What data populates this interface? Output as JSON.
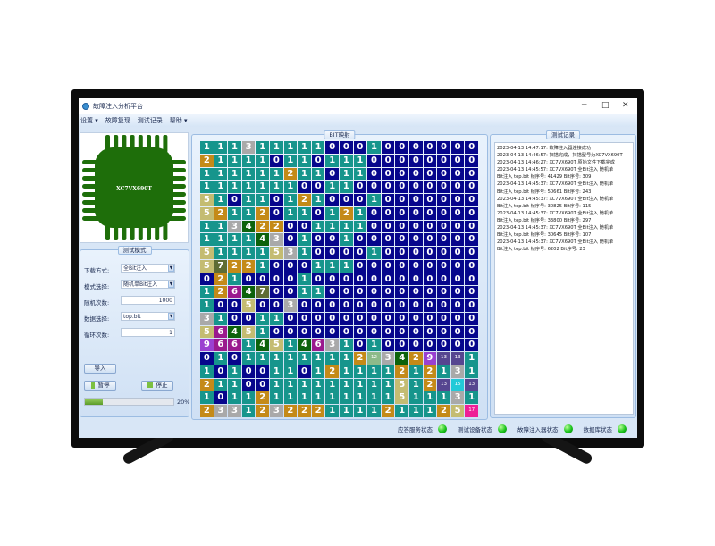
{
  "window": {
    "title": "故障注入分析平台",
    "controls": [
      "minimize",
      "maximize",
      "close"
    ]
  },
  "menu": [
    {
      "label": "设置",
      "has_dropdown": true
    },
    {
      "label": "故障复现",
      "has_dropdown": false
    },
    {
      "label": "测试记录",
      "has_dropdown": false
    },
    {
      "label": "帮助",
      "has_dropdown": true
    }
  ],
  "chip": {
    "label": "XC7VX690T",
    "color": "#1e6e0a"
  },
  "test_mode": {
    "title": "测试模式",
    "fields": [
      {
        "label": "下载方式:",
        "value": "全Bit注入",
        "type": "dropdown"
      },
      {
        "label": "模式选择:",
        "value": "随机单Bit注入",
        "type": "dropdown"
      },
      {
        "label": "随机次数:",
        "value": "1000",
        "type": "input"
      },
      {
        "label": "数据选择:",
        "value": "top.bit",
        "type": "dropdown"
      },
      {
        "label": "循环次数:",
        "value": "1",
        "type": "input"
      }
    ],
    "import_label": "导入",
    "pause_label": "暂停",
    "stop_label": "停止",
    "progress": 20,
    "progress_label": "20%"
  },
  "bit_map": {
    "title": "BIT映射",
    "value_colors": {
      "0": "#06068c",
      "1": "#16958c",
      "2": "#c48a18",
      "3": "#a9a9a9",
      "4": "#0c620c",
      "5": "#c4bc72",
      "6": "#9a1a8e",
      "7": "#5e6c34",
      "9": "#9a40d0",
      "12": "#8cba8a",
      "13": "#564690",
      "15": "#22cad8",
      "17": "#ee1e96"
    },
    "rows": [
      [
        1,
        1,
        1,
        3,
        1,
        1,
        1,
        1,
        1,
        0,
        0,
        0,
        1,
        0,
        0,
        0,
        0,
        0,
        0,
        0
      ],
      [
        2,
        1,
        1,
        1,
        1,
        0,
        1,
        1,
        0,
        1,
        1,
        1,
        0,
        0,
        0,
        0,
        0,
        0,
        0,
        0
      ],
      [
        1,
        1,
        1,
        1,
        1,
        1,
        2,
        1,
        1,
        0,
        1,
        1,
        0,
        0,
        0,
        0,
        0,
        0,
        0,
        0
      ],
      [
        1,
        1,
        1,
        1,
        1,
        1,
        1,
        0,
        0,
        1,
        1,
        0,
        0,
        0,
        0,
        0,
        0,
        0,
        0,
        0
      ],
      [
        5,
        1,
        0,
        1,
        1,
        0,
        1,
        2,
        1,
        0,
        0,
        0,
        1,
        0,
        0,
        0,
        0,
        0,
        0,
        0
      ],
      [
        5,
        2,
        1,
        1,
        2,
        0,
        1,
        1,
        0,
        1,
        2,
        1,
        0,
        0,
        0,
        0,
        0,
        0,
        0,
        0
      ],
      [
        1,
        1,
        3,
        4,
        2,
        2,
        0,
        0,
        1,
        1,
        1,
        1,
        0,
        0,
        0,
        0,
        0,
        0,
        0,
        0
      ],
      [
        1,
        1,
        1,
        1,
        4,
        3,
        0,
        1,
        0,
        0,
        1,
        0,
        0,
        0,
        0,
        0,
        0,
        0,
        0,
        0
      ],
      [
        5,
        1,
        1,
        1,
        1,
        5,
        3,
        1,
        0,
        0,
        0,
        0,
        1,
        0,
        0,
        0,
        0,
        0,
        0,
        0
      ],
      [
        5,
        7,
        2,
        2,
        1,
        0,
        0,
        0,
        1,
        1,
        1,
        0,
        0,
        0,
        0,
        0,
        0,
        0,
        0,
        0
      ],
      [
        0,
        2,
        1,
        0,
        0,
        0,
        0,
        1,
        0,
        0,
        0,
        0,
        0,
        0,
        0,
        0,
        0,
        0,
        0,
        0
      ],
      [
        1,
        2,
        6,
        4,
        7,
        0,
        0,
        1,
        1,
        0,
        0,
        0,
        0,
        0,
        0,
        0,
        0,
        0,
        0,
        0
      ],
      [
        1,
        0,
        0,
        5,
        0,
        0,
        3,
        0,
        0,
        0,
        0,
        0,
        0,
        0,
        0,
        0,
        0,
        0,
        0,
        0
      ],
      [
        3,
        1,
        0,
        0,
        1,
        1,
        0,
        0,
        0,
        0,
        0,
        0,
        0,
        0,
        0,
        0,
        0,
        0,
        0,
        0
      ],
      [
        5,
        6,
        4,
        5,
        1,
        0,
        0,
        0,
        0,
        0,
        0,
        0,
        0,
        0,
        0,
        0,
        0,
        0,
        0,
        0
      ],
      [
        9,
        6,
        6,
        1,
        4,
        5,
        1,
        4,
        6,
        3,
        1,
        0,
        1,
        0,
        0,
        0,
        0,
        0,
        0,
        0
      ],
      [
        0,
        1,
        0,
        1,
        1,
        1,
        1,
        1,
        1,
        1,
        1,
        2,
        12,
        3,
        4,
        2,
        9,
        13,
        13,
        1
      ],
      [
        1,
        0,
        1,
        0,
        0,
        1,
        1,
        0,
        1,
        2,
        1,
        1,
        1,
        1,
        2,
        1,
        2,
        1,
        3,
        1
      ],
      [
        2,
        1,
        1,
        0,
        0,
        1,
        1,
        1,
        1,
        1,
        1,
        1,
        1,
        1,
        5,
        1,
        2,
        13,
        15,
        13
      ],
      [
        1,
        0,
        1,
        1,
        2,
        1,
        1,
        1,
        1,
        1,
        1,
        1,
        1,
        1,
        5,
        1,
        1,
        1,
        3,
        1
      ],
      [
        2,
        3,
        3,
        1,
        2,
        3,
        2,
        2,
        2,
        1,
        1,
        1,
        1,
        2,
        1,
        1,
        1,
        2,
        5,
        17
      ]
    ]
  },
  "test_log": {
    "title": "测试记录",
    "lines": [
      "2023-04-13 14:47:17: 故障注入器连接成功",
      "2023-04-13 14:46:57: 扫描完成，扫描型号为XC7VX690T",
      "2023-04-13 14:46:27: XC7VX690T  原始文件下载完成",
      "2023-04-13 14:45:57: XC7VX690T  全Bit注入  随机单",
      "Bit注入  top.bit  帧序号: 41429  Bit序号: 309",
      "2023-04-13 14:45:37: XC7VX690T  全Bit注入  随机单",
      "Bit注入  top.bit  帧序号: 50661  Bit序号: 243",
      "2023-04-13 14:45:37: XC7VX690T  全Bit注入  随机单",
      "Bit注入  top.bit  帧序号: 30825  Bit序号: 115",
      "2023-04-13 14:45:37: XC7VX690T  全Bit注入  随机单",
      "Bit注入  top.bit  帧序号: 33800  Bit序号: 297",
      "2023-04-13 14:45:37: XC7VX690T  全Bit注入  随机单",
      "Bit注入  top.bit  帧序号: 30645  Bit序号: 107",
      "2023-04-13 14:45:37: XC7VX690T  全Bit注入  随机单",
      "Bit注入  top.bit  帧序号: 6202  Bit序号: 23"
    ]
  },
  "status_bar": [
    {
      "label": "应答服务状态",
      "state": "ok",
      "color": "#19c21a"
    },
    {
      "label": "测试设备状态",
      "state": "ok",
      "color": "#19c21a"
    },
    {
      "label": "故障注入器状态",
      "state": "ok",
      "color": "#19c21a"
    },
    {
      "label": "数据库状态",
      "state": "ok",
      "color": "#19c21a"
    }
  ]
}
